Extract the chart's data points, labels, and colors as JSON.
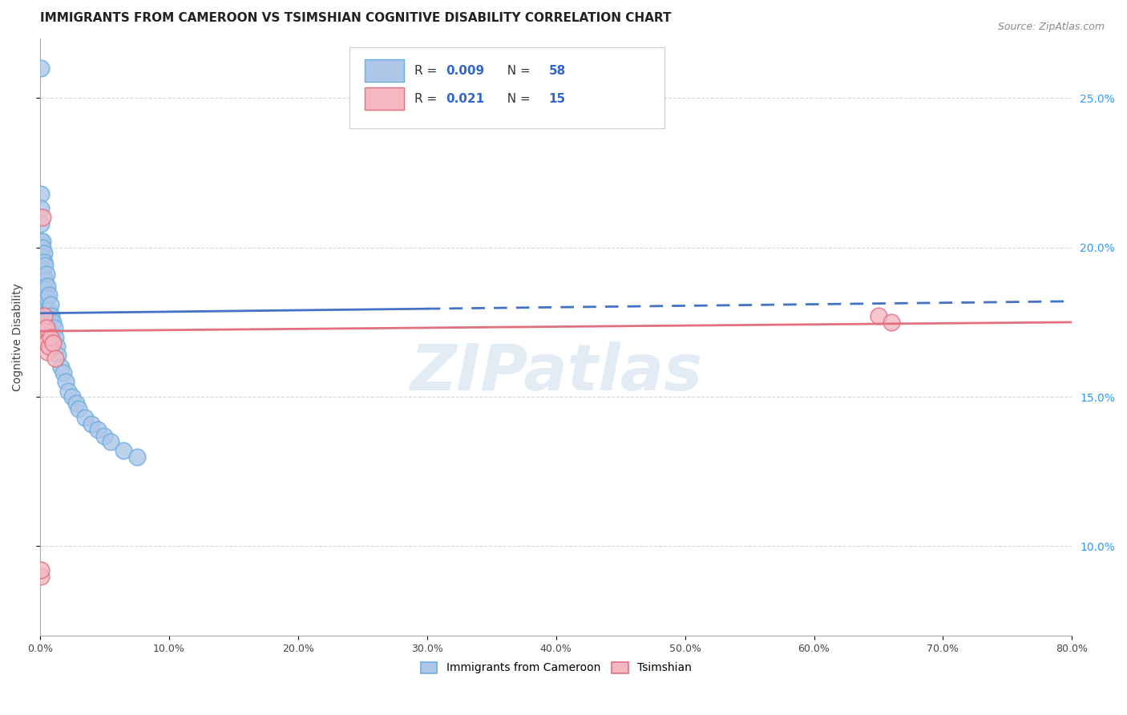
{
  "title": "IMMIGRANTS FROM CAMEROON VS TSIMSHIAN COGNITIVE DISABILITY CORRELATION CHART",
  "source": "Source: ZipAtlas.com",
  "ylabel": "Cognitive Disability",
  "watermark": "ZIPatlas",
  "series1": {
    "label": "Immigrants from Cameroon",
    "R": "0.009",
    "N": "58",
    "color": "#aec6e8",
    "edge_color": "#6aaee0",
    "trend_color": "#4472c4",
    "trend_x": [
      0.0,
      0.8
    ],
    "trend_y": [
      0.178,
      0.182
    ],
    "x": [
      0.0005,
      0.001,
      0.001,
      0.001,
      0.001,
      0.001,
      0.002,
      0.002,
      0.002,
      0.002,
      0.002,
      0.002,
      0.002,
      0.003,
      0.003,
      0.003,
      0.003,
      0.003,
      0.003,
      0.004,
      0.004,
      0.004,
      0.004,
      0.005,
      0.005,
      0.005,
      0.005,
      0.006,
      0.006,
      0.006,
      0.007,
      0.007,
      0.007,
      0.008,
      0.008,
      0.008,
      0.009,
      0.009,
      0.01,
      0.01,
      0.011,
      0.012,
      0.013,
      0.014,
      0.016,
      0.018,
      0.02,
      0.022,
      0.025,
      0.028,
      0.03,
      0.035,
      0.04,
      0.045,
      0.05,
      0.055,
      0.065,
      0.075
    ],
    "y": [
      0.26,
      0.218,
      0.213,
      0.208,
      0.202,
      0.197,
      0.202,
      0.2,
      0.197,
      0.192,
      0.19,
      0.186,
      0.182,
      0.198,
      0.195,
      0.19,
      0.186,
      0.181,
      0.178,
      0.194,
      0.189,
      0.184,
      0.18,
      0.191,
      0.186,
      0.179,
      0.174,
      0.187,
      0.183,
      0.177,
      0.184,
      0.179,
      0.173,
      0.181,
      0.176,
      0.171,
      0.177,
      0.172,
      0.175,
      0.169,
      0.173,
      0.17,
      0.167,
      0.164,
      0.16,
      0.158,
      0.155,
      0.152,
      0.15,
      0.148,
      0.146,
      0.143,
      0.141,
      0.139,
      0.137,
      0.135,
      0.132,
      0.13
    ]
  },
  "series2": {
    "label": "Tsimshian",
    "R": "0.021",
    "N": "15",
    "color": "#f4b8c1",
    "edge_color": "#e07080",
    "trend_color": "#e07080",
    "trend_x": [
      0.0,
      0.8
    ],
    "trend_y": [
      0.172,
      0.175
    ],
    "x": [
      0.0005,
      0.001,
      0.002,
      0.003,
      0.004,
      0.004,
      0.005,
      0.005,
      0.006,
      0.007,
      0.008,
      0.01,
      0.012,
      0.65,
      0.66
    ],
    "y": [
      0.09,
      0.092,
      0.21,
      0.177,
      0.172,
      0.168,
      0.173,
      0.168,
      0.165,
      0.167,
      0.17,
      0.168,
      0.163,
      0.177,
      0.175
    ]
  },
  "xlim": [
    0.0,
    0.8
  ],
  "ylim": [
    0.07,
    0.27
  ],
  "right_yticks": [
    0.1,
    0.15,
    0.2,
    0.25
  ],
  "right_yticklabels": [
    "10.0%",
    "15.0%",
    "20.0%",
    "25.0%"
  ],
  "grid_color": "#cccccc",
  "background_color": "#ffffff",
  "title_fontsize": 11,
  "axis_label_fontsize": 10,
  "legend_text_color": "#333333",
  "legend_num_color": "#3366cc"
}
